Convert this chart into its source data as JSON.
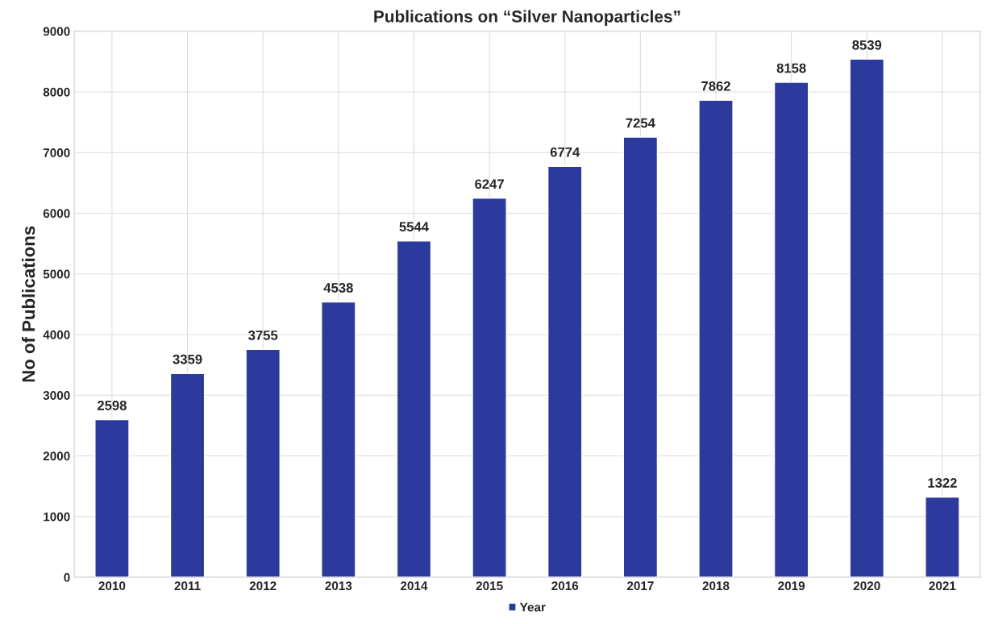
{
  "chart_data": {
    "type": "bar",
    "title": "Publications on “Silver Nanoparticles”",
    "ylabel": "No of Publications",
    "categories": [
      "2010",
      "2011",
      "2012",
      "2013",
      "2014",
      "2015",
      "2016",
      "2017",
      "2018",
      "2019",
      "2020",
      "2021"
    ],
    "series": [
      {
        "name": "Year",
        "color": "#2b3a9c",
        "values": [
          2598,
          3359,
          3755,
          4538,
          5544,
          6247,
          6774,
          7254,
          7862,
          8158,
          8539,
          1322
        ]
      }
    ],
    "ylim": [
      0,
      9000
    ],
    "yticks": [
      0,
      1000,
      2000,
      3000,
      4000,
      5000,
      6000,
      7000,
      8000,
      9000
    ],
    "grid": true,
    "legend": "bottom",
    "data_labels": true
  }
}
